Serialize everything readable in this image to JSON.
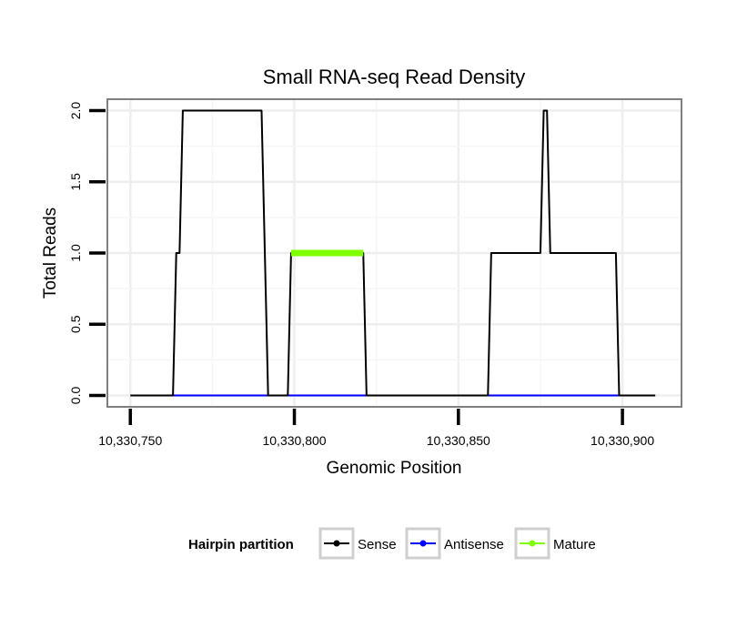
{
  "chart_data": {
    "type": "line",
    "title": "Small RNA-seq Read Density",
    "xlabel": "Genomic Position",
    "ylabel": "Total Reads",
    "xlim": [
      10330743,
      10330918
    ],
    "ylim": [
      -0.08,
      2.08
    ],
    "x_ticks": [
      10330750,
      10330800,
      10330850,
      10330900
    ],
    "x_tick_labels": [
      "10,330,750",
      "10,330,800",
      "10,330,850",
      "10,330,900"
    ],
    "y_ticks": [
      0,
      0.5,
      1,
      1.5,
      2
    ],
    "y_tick_labels": [
      "0.0",
      "0.5",
      "1.0",
      "1.5",
      "2.0"
    ],
    "grid": true,
    "legend": {
      "title": "Hairpin partition",
      "position": "bottom",
      "entries": [
        "Sense",
        "Antisense",
        "Mature"
      ]
    },
    "series": [
      {
        "name": "Sense",
        "color": "#000000",
        "x": [
          10330750,
          10330763,
          10330764,
          10330765,
          10330766,
          10330790,
          10330792,
          10330798,
          10330799,
          10330821,
          10330822,
          10330848,
          10330859,
          10330860,
          10330875,
          10330876,
          10330877,
          10330878,
          10330898,
          10330899,
          10330910
        ],
        "values": [
          0,
          0,
          1,
          1,
          2,
          2,
          0,
          0,
          1,
          1,
          0,
          0,
          0,
          1,
          1,
          2,
          2,
          1,
          1,
          0,
          0
        ]
      },
      {
        "name": "Antisense",
        "color": "#0000ff",
        "x": [
          10330763,
          10330899
        ],
        "values": [
          0,
          0
        ]
      },
      {
        "name": "Mature",
        "color": "#7fff00",
        "x": [
          10330799,
          10330821
        ],
        "values": [
          1,
          1
        ]
      }
    ]
  }
}
